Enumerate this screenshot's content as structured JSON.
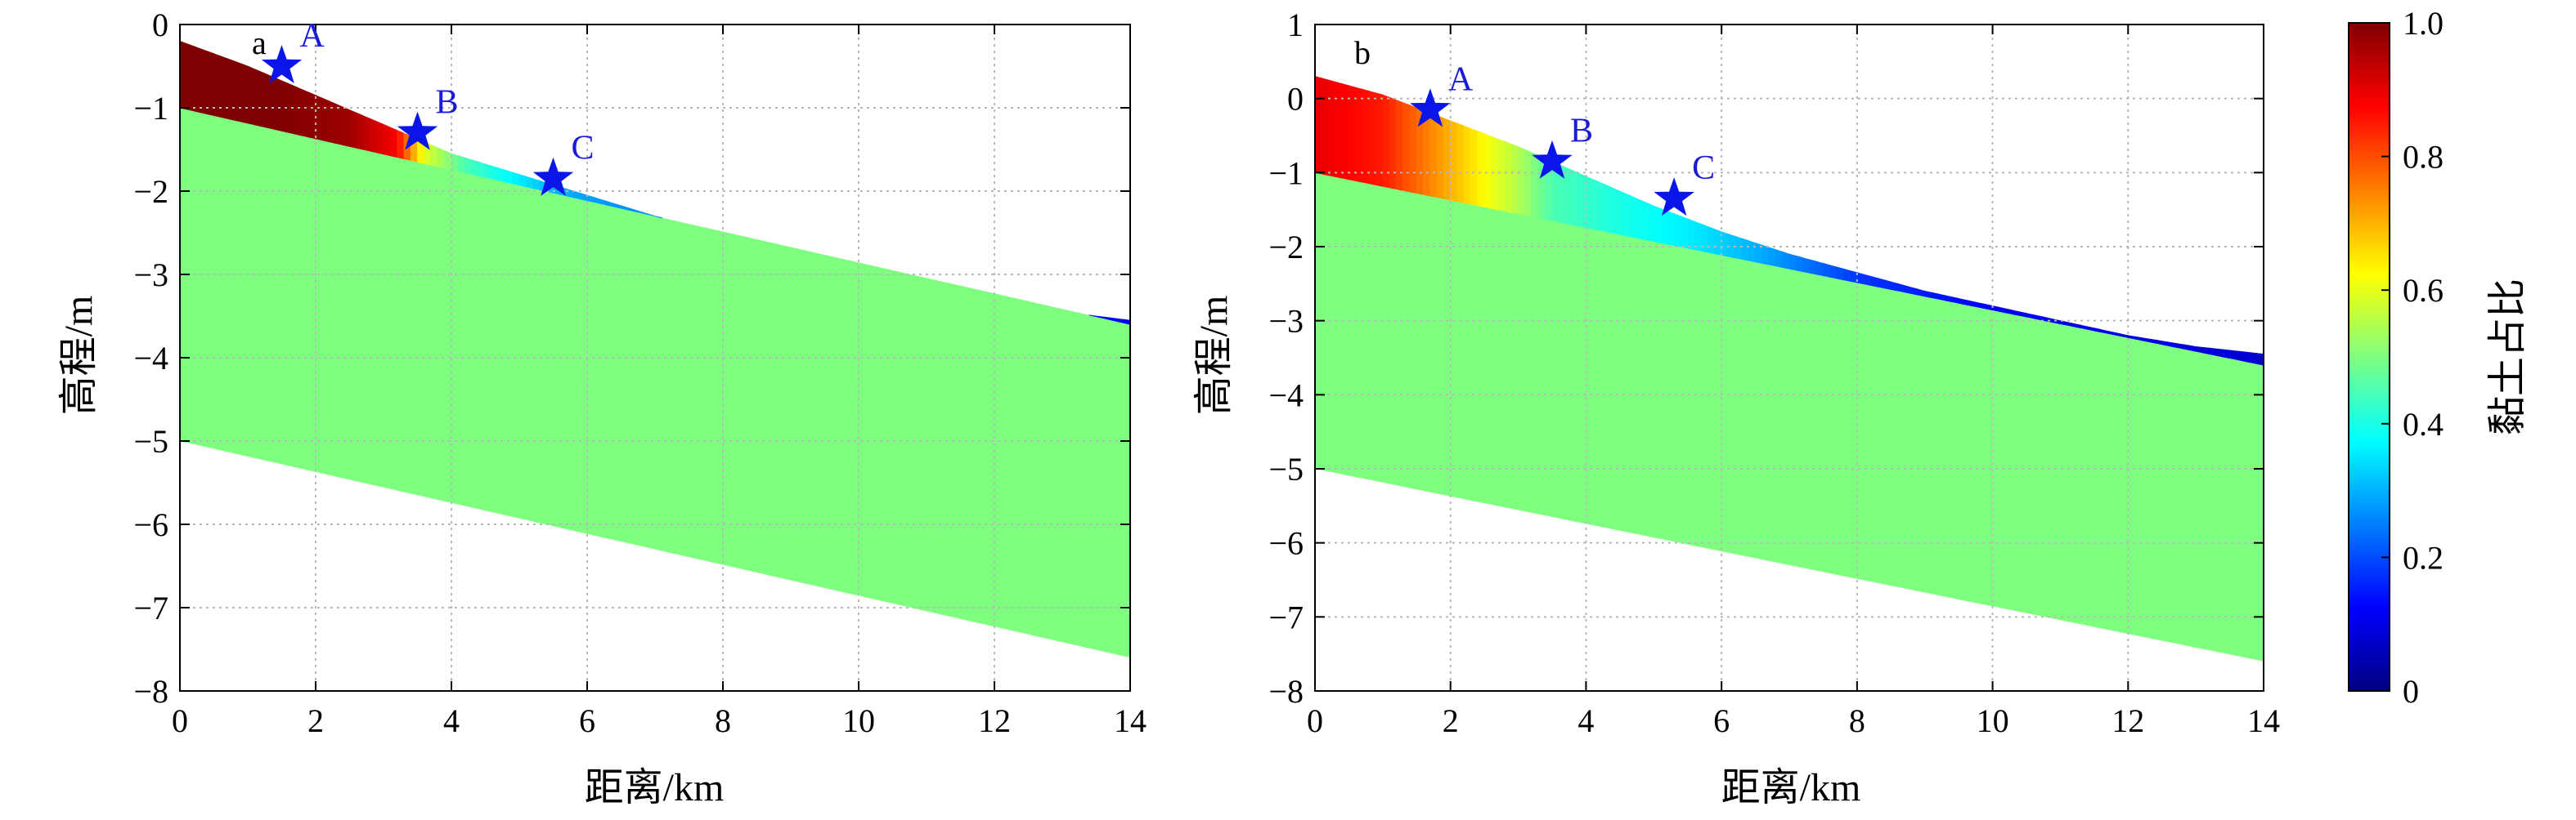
{
  "chart_data": [
    {
      "type": "heatmap",
      "panel_label": "a",
      "xlabel": "距离/km",
      "ylabel": "高程/m",
      "xlim": [
        0,
        14
      ],
      "ylim": [
        -8,
        0
      ],
      "xticks": [
        "0",
        "2",
        "4",
        "6",
        "8",
        "10",
        "12",
        "14"
      ],
      "yticks": [
        "0",
        "−1",
        "−2",
        "−3",
        "−4",
        "−5",
        "−6",
        "−7",
        "−8"
      ],
      "grid": true,
      "surface_profile": [
        [
          0,
          -0.2
        ],
        [
          1,
          -0.5
        ],
        [
          2,
          -0.85
        ],
        [
          3,
          -1.2
        ],
        [
          4,
          -1.55
        ],
        [
          5,
          -1.8
        ],
        [
          6,
          -2.05
        ],
        [
          7,
          -2.3
        ],
        [
          8,
          -2.55
        ],
        [
          9,
          -2.75
        ],
        [
          10,
          -2.95
        ],
        [
          11,
          -3.15
        ],
        [
          12,
          -3.3
        ],
        [
          13,
          -3.45
        ],
        [
          14,
          -3.55
        ]
      ],
      "base_profile": [
        [
          0,
          -5.0
        ],
        [
          14,
          -7.6
        ]
      ],
      "mixed_layer_bottom": [
        [
          0,
          -1.0
        ],
        [
          14,
          -3.6
        ]
      ],
      "clay_ratio_along_profile": [
        [
          0,
          1.0
        ],
        [
          1.5,
          1.0
        ],
        [
          2.5,
          0.97
        ],
        [
          3.2,
          0.88
        ],
        [
          3.6,
          0.6
        ],
        [
          4.2,
          0.45
        ],
        [
          4.8,
          0.38
        ],
        [
          5.5,
          0.3
        ],
        [
          6.5,
          0.27
        ],
        [
          8,
          0.24
        ],
        [
          10,
          0.2
        ],
        [
          12,
          0.16
        ],
        [
          14,
          0.12
        ]
      ],
      "underlying_value": 0.5,
      "markers": [
        {
          "label": "A",
          "x": 1.5,
          "y": -0.5
        },
        {
          "label": "B",
          "x": 3.5,
          "y": -1.3
        },
        {
          "label": "C",
          "x": 5.5,
          "y": -1.85
        }
      ]
    },
    {
      "type": "heatmap",
      "panel_label": "b",
      "xlabel": "距离/km",
      "ylabel": "高程/m",
      "xlim": [
        0,
        14
      ],
      "ylim": [
        -8,
        1
      ],
      "xticks": [
        "0",
        "2",
        "4",
        "6",
        "8",
        "10",
        "12",
        "14"
      ],
      "yticks": [
        "1",
        "0",
        "−1",
        "−2",
        "−3",
        "−4",
        "−5",
        "−6",
        "−7",
        "−8"
      ],
      "grid": true,
      "surface_profile": [
        [
          0,
          0.3
        ],
        [
          1,
          0.05
        ],
        [
          2,
          -0.3
        ],
        [
          3,
          -0.65
        ],
        [
          4,
          -1.05
        ],
        [
          5,
          -1.45
        ],
        [
          6,
          -1.8
        ],
        [
          7,
          -2.1
        ],
        [
          8,
          -2.35
        ],
        [
          9,
          -2.6
        ],
        [
          10,
          -2.8
        ],
        [
          11,
          -3.0
        ],
        [
          12,
          -3.2
        ],
        [
          13,
          -3.35
        ],
        [
          14,
          -3.45
        ]
      ],
      "base_profile": [
        [
          0,
          -5.0
        ],
        [
          14,
          -7.6
        ]
      ],
      "mixed_layer_bottom": [
        [
          0,
          -1.0
        ],
        [
          14,
          -3.6
        ]
      ],
      "clay_ratio_along_profile": [
        [
          0,
          0.9
        ],
        [
          1,
          0.85
        ],
        [
          2,
          0.7
        ],
        [
          3,
          0.55
        ],
        [
          3.5,
          0.45
        ],
        [
          4.5,
          0.4
        ],
        [
          5.5,
          0.36
        ],
        [
          6.5,
          0.3
        ],
        [
          8,
          0.18
        ],
        [
          10,
          0.12
        ],
        [
          12,
          0.1
        ],
        [
          14,
          0.08
        ]
      ],
      "underlying_value": 0.5,
      "markers": [
        {
          "label": "A",
          "x": 1.7,
          "y": -0.15
        },
        {
          "label": "B",
          "x": 3.5,
          "y": -0.85
        },
        {
          "label": "C",
          "x": 5.3,
          "y": -1.35
        }
      ]
    }
  ],
  "colorbar": {
    "label": "黏土占比",
    "range": [
      0,
      1.0
    ],
    "ticks": [
      "1.0",
      "0.8",
      "0.6",
      "0.4",
      "0.2",
      "0"
    ],
    "colormap": [
      "#00007f",
      "#0000ff",
      "#007fff",
      "#00ffff",
      "#7fff7f",
      "#ffff00",
      "#ff7f00",
      "#ff0000",
      "#7f0000"
    ]
  },
  "colors": {
    "green_fill": "#80ff80",
    "marker": "#0a16e8",
    "marker_label": "#1a1ad8",
    "grid": "#b8b8b8"
  }
}
